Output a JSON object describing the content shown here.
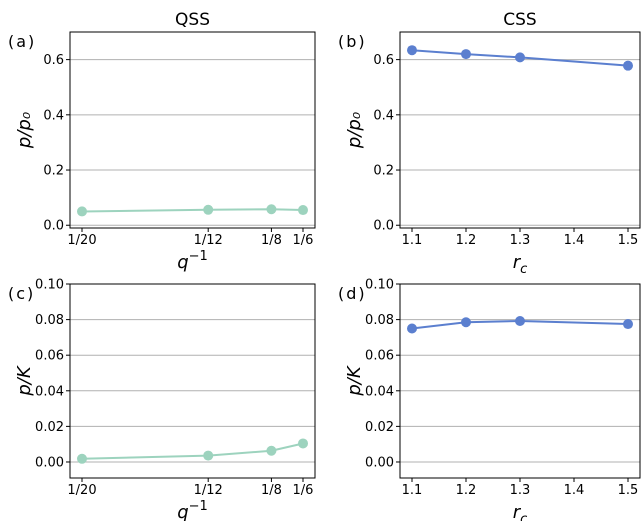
{
  "chart_data": [
    {
      "id": "a",
      "type": "line",
      "panel_label": "(a)",
      "title": "QSS",
      "xlabel_base": "q",
      "xlabel_sup": "−1",
      "ylabel": "p/p₀",
      "x_scale": "reciprocal",
      "x": [
        0.05,
        0.0833,
        0.125,
        0.1667
      ],
      "xticks": [
        0.05,
        0.0833,
        0.125,
        0.1667
      ],
      "xtick_labels": [
        "1/20",
        "1/12",
        "1/8",
        "1/6"
      ],
      "xlim": [
        0.05,
        0.1667
      ],
      "ylim": [
        -0.01,
        0.7
      ],
      "yticks": [
        0.0,
        0.2,
        0.4,
        0.6
      ],
      "ytick_labels": [
        "0.0",
        "0.2",
        "0.4",
        "0.6"
      ],
      "grid": "horizontal",
      "series": [
        {
          "values": [
            0.05,
            0.056,
            0.058,
            0.055
          ],
          "color": "#9dd3be"
        }
      ]
    },
    {
      "id": "b",
      "type": "line",
      "panel_label": "(b)",
      "title": "CSS",
      "xlabel_base": "r",
      "xlabel_sub": "c",
      "ylabel": "p/p₀",
      "x_scale": "linear",
      "x": [
        1.1,
        1.2,
        1.3,
        1.5
      ],
      "xticks": [
        1.1,
        1.2,
        1.3,
        1.4,
        1.5
      ],
      "xtick_labels": [
        "1.1",
        "1.2",
        "1.3",
        "1.4",
        "1.5"
      ],
      "xlim": [
        1.1,
        1.5
      ],
      "ylim": [
        -0.01,
        0.7
      ],
      "yticks": [
        0.0,
        0.2,
        0.4,
        0.6
      ],
      "ytick_labels": [
        "0.0",
        "0.2",
        "0.4",
        "0.6"
      ],
      "grid": "horizontal",
      "series": [
        {
          "values": [
            0.634,
            0.62,
            0.608,
            0.578
          ],
          "color": "#5b7fcf"
        }
      ]
    },
    {
      "id": "c",
      "type": "line",
      "panel_label": "(c)",
      "xlabel_base": "q",
      "xlabel_sup": "−1",
      "ylabel": "p/K",
      "x_scale": "reciprocal",
      "x": [
        0.05,
        0.0833,
        0.125,
        0.1667
      ],
      "xticks": [
        0.05,
        0.0833,
        0.125,
        0.1667
      ],
      "xtick_labels": [
        "1/20",
        "1/12",
        "1/8",
        "1/6"
      ],
      "xlim": [
        0.05,
        0.1667
      ],
      "ylim": [
        -0.009,
        0.1
      ],
      "yticks": [
        0.0,
        0.02,
        0.04,
        0.06,
        0.08,
        0.1
      ],
      "ytick_labels": [
        "0.00",
        "0.02",
        "0.04",
        "0.06",
        "0.08",
        "0.10"
      ],
      "grid": "horizontal",
      "series": [
        {
          "values": [
            0.0018,
            0.0036,
            0.0063,
            0.0104
          ],
          "color": "#9dd3be"
        }
      ]
    },
    {
      "id": "d",
      "type": "line",
      "panel_label": "(d)",
      "xlabel_base": "r",
      "xlabel_sub": "c",
      "ylabel": "p/K",
      "x_scale": "linear",
      "x": [
        1.1,
        1.2,
        1.3,
        1.5
      ],
      "xticks": [
        1.1,
        1.2,
        1.3,
        1.4,
        1.5
      ],
      "xtick_labels": [
        "1.1",
        "1.2",
        "1.3",
        "1.4",
        "1.5"
      ],
      "xlim": [
        1.1,
        1.5
      ],
      "ylim": [
        -0.009,
        0.1
      ],
      "yticks": [
        0.0,
        0.02,
        0.04,
        0.06,
        0.08,
        0.1
      ],
      "ytick_labels": [
        "0.00",
        "0.02",
        "0.04",
        "0.06",
        "0.08",
        "0.10"
      ],
      "grid": "horizontal",
      "series": [
        {
          "values": [
            0.075,
            0.0785,
            0.0792,
            0.0775
          ],
          "color": "#5b7fcf"
        }
      ]
    }
  ]
}
